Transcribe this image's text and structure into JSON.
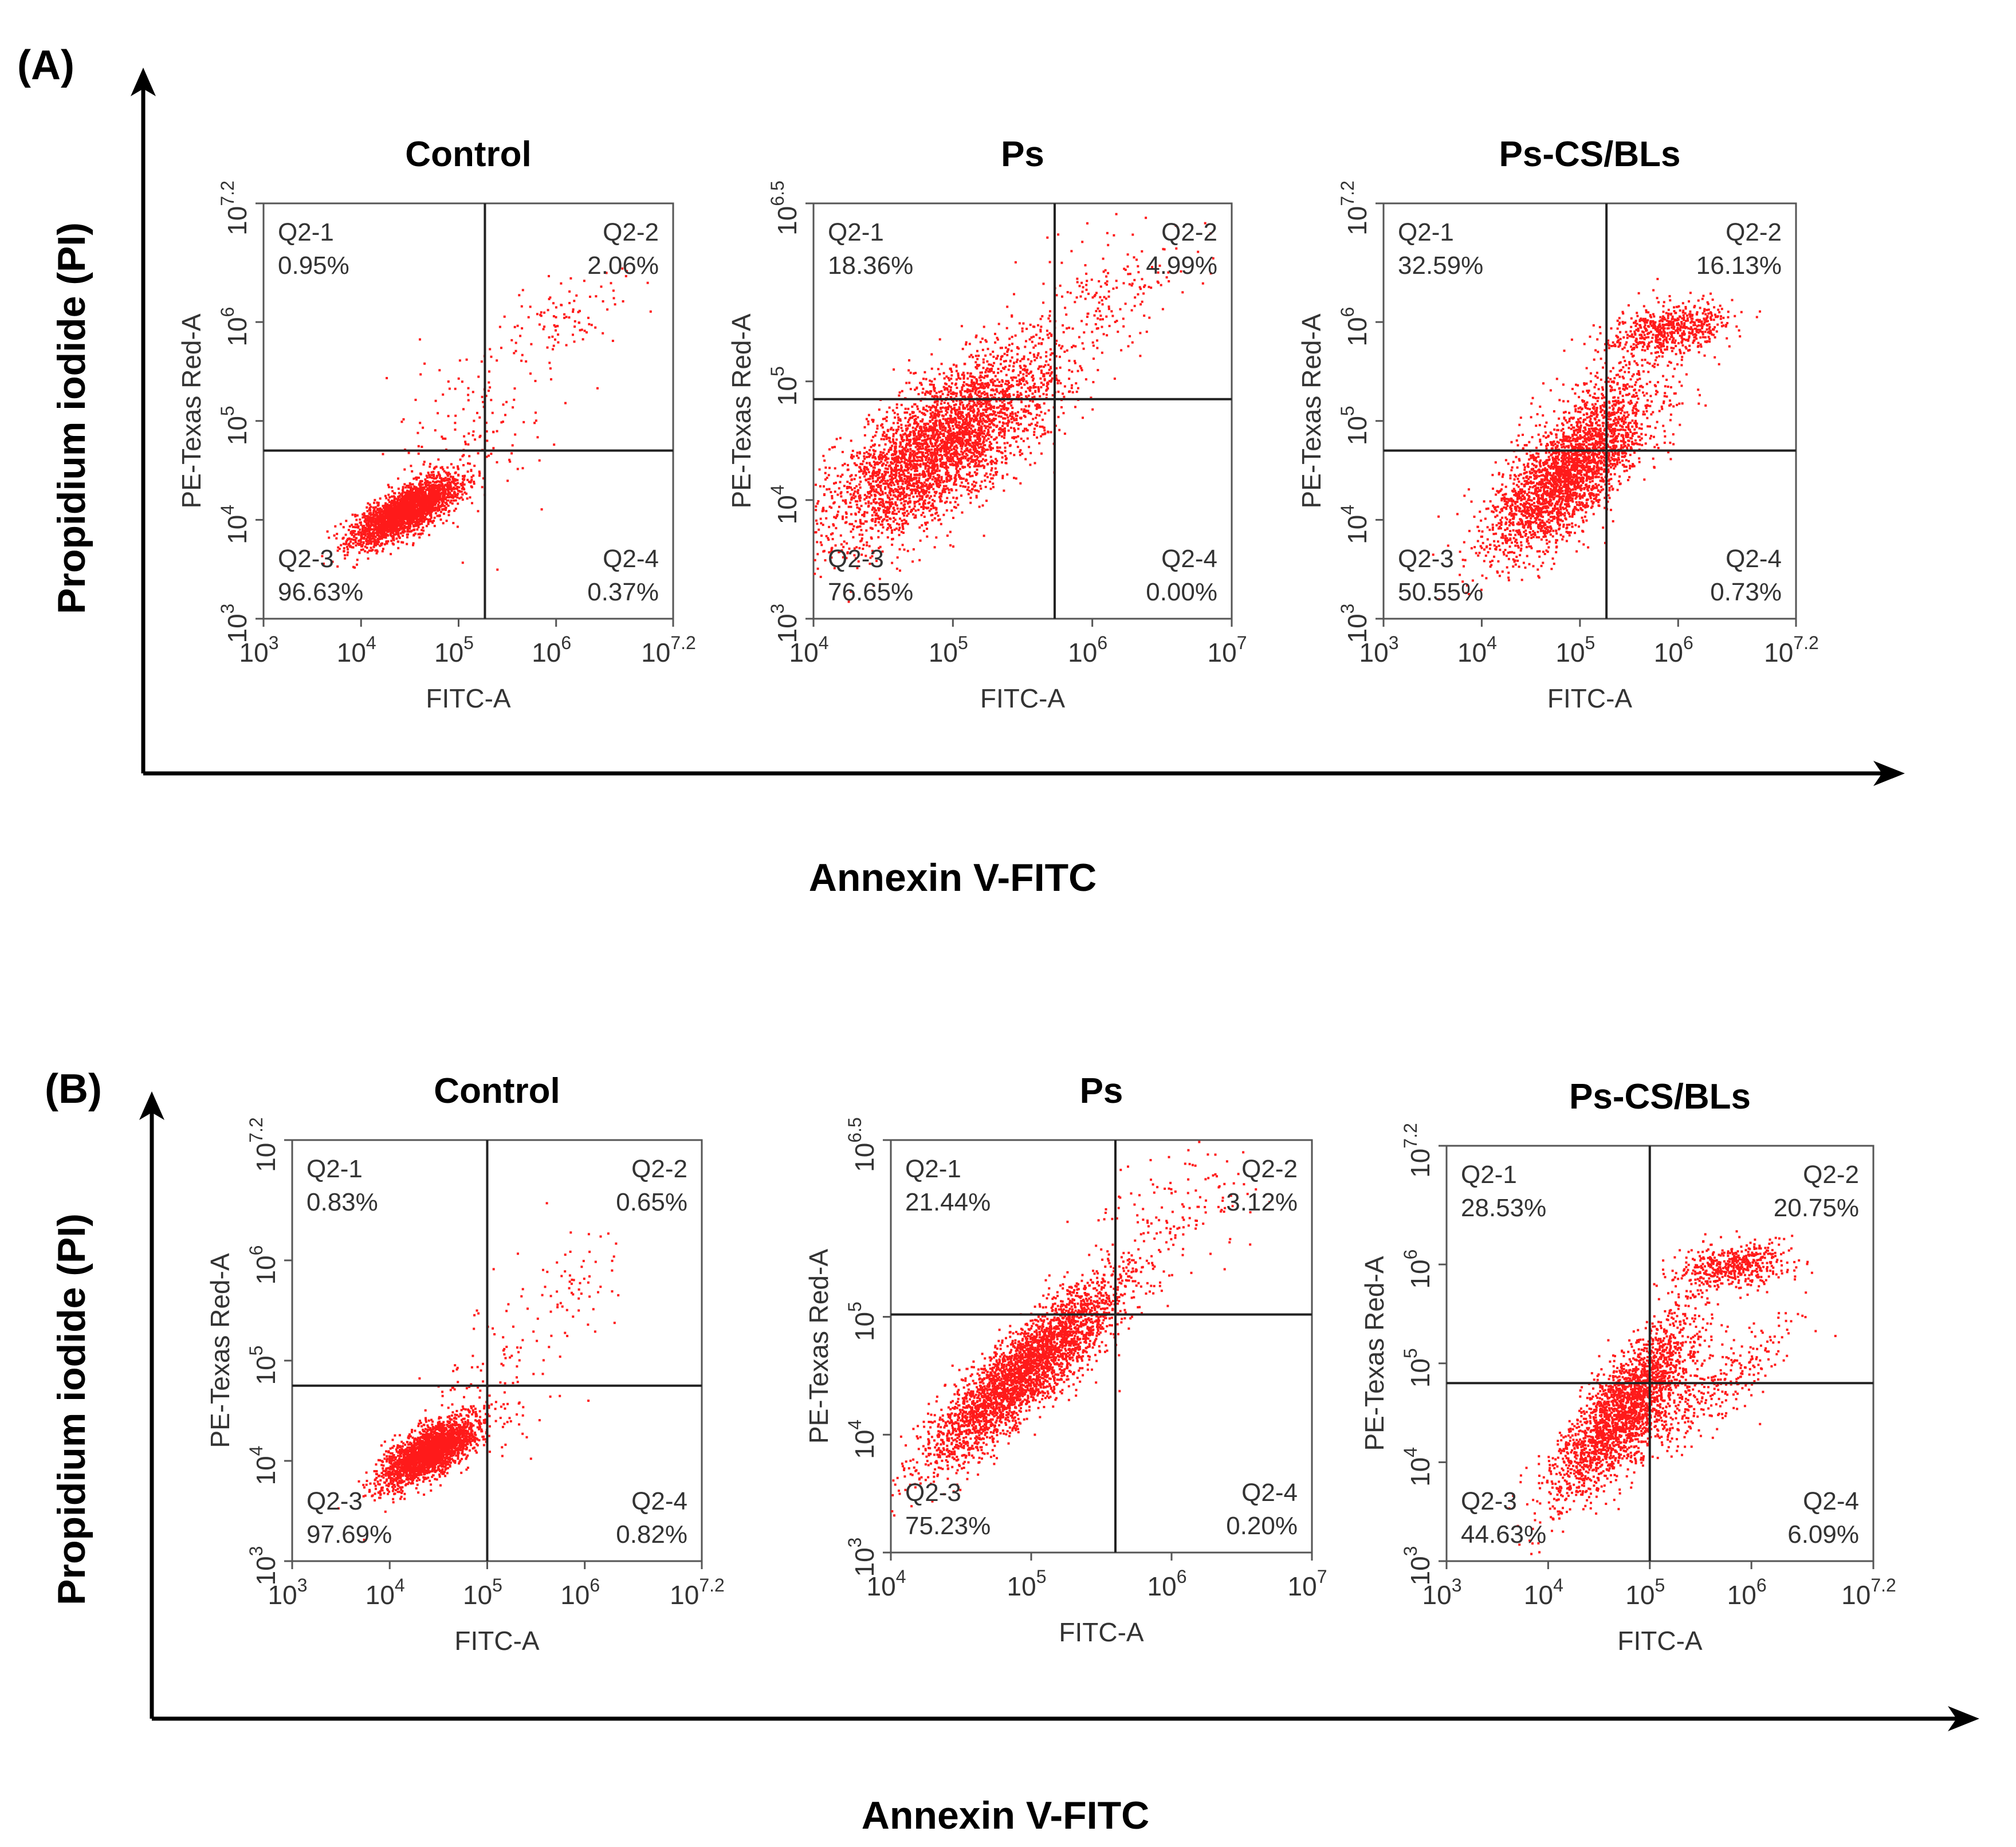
{
  "figure": {
    "panels": [
      {
        "label": "(A)",
        "y_axis_title": "Propidium iodide (PI)",
        "x_axis_title": "Annexin V-FITC"
      },
      {
        "label": "(B)",
        "y_axis_title": "Propidium iodide (PI)",
        "x_axis_title": "Annexin V-FITC"
      }
    ]
  },
  "colors": {
    "dots": "#ff1a1a",
    "axes": "#000000",
    "gate": "#222222",
    "text": "#333333"
  },
  "chart_data": [
    {
      "panel": "A",
      "title": "Control",
      "type": "scatter",
      "xlabel": "FITC-A",
      "ylabel": "PE-Texas Red-A",
      "xlim": [
        3,
        7.2
      ],
      "ylim": [
        3,
        7.2
      ],
      "xticks": [
        {
          "base": "10",
          "exp": "3",
          "v": 3
        },
        {
          "base": "10",
          "exp": "4",
          "v": 4
        },
        {
          "base": "10",
          "exp": "5",
          "v": 5
        },
        {
          "base": "10",
          "exp": "6",
          "v": 6
        },
        {
          "base": "10",
          "exp": "7.2",
          "v": 7.2
        }
      ],
      "yticks": [
        {
          "base": "10",
          "exp": "3",
          "v": 3
        },
        {
          "base": "10",
          "exp": "4",
          "v": 4
        },
        {
          "base": "10",
          "exp": "5",
          "v": 5
        },
        {
          "base": "10",
          "exp": "6",
          "v": 6
        },
        {
          "base": "10",
          "exp": "7.2",
          "v": 7.2
        }
      ],
      "gate": {
        "x": 5.27,
        "y": 4.7
      },
      "quadrants": [
        {
          "id": "Q2-1",
          "value": "0.95%"
        },
        {
          "id": "Q2-2",
          "value": "2.06%"
        },
        {
          "id": "Q2-3",
          "value": "96.63%"
        },
        {
          "id": "Q2-4",
          "value": "0.37%"
        }
      ],
      "clusters": [
        {
          "cx": 4.45,
          "cy": 4.1,
          "sx": 0.27,
          "sy": 0.17,
          "rho": 0.75,
          "n": 2600
        },
        {
          "cx": 6.15,
          "cy": 6.05,
          "sx": 0.3,
          "sy": 0.22,
          "rho": 0.5,
          "n": 90
        },
        {
          "cx": 5.2,
          "cy": 5.0,
          "sx": 0.45,
          "sy": 0.5,
          "rho": 0.4,
          "n": 160
        }
      ]
    },
    {
      "panel": "A",
      "title": "Ps",
      "type": "scatter",
      "xlabel": "FITC-A",
      "ylabel": "PE-Texas Red-A",
      "xlim": [
        4,
        7
      ],
      "ylim": [
        3,
        6.5
      ],
      "xticks": [
        {
          "base": "10",
          "exp": "4",
          "v": 4
        },
        {
          "base": "10",
          "exp": "5",
          "v": 5
        },
        {
          "base": "10",
          "exp": "6",
          "v": 6
        },
        {
          "base": "10",
          "exp": "7",
          "v": 7
        }
      ],
      "yticks": [
        {
          "base": "10",
          "exp": "3",
          "v": 3
        },
        {
          "base": "10",
          "exp": "4",
          "v": 4
        },
        {
          "base": "10",
          "exp": "5",
          "v": 5
        },
        {
          "base": "10",
          "exp": "6.5",
          "v": 6.5
        }
      ],
      "gate": {
        "x": 5.73,
        "y": 4.85
      },
      "quadrants": [
        {
          "id": "Q2-1",
          "value": "18.36%"
        },
        {
          "id": "Q2-2",
          "value": "4.99%"
        },
        {
          "id": "Q2-3",
          "value": "76.65%"
        },
        {
          "id": "Q2-4",
          "value": "0.00%"
        }
      ],
      "clusters": [
        {
          "cx": 4.9,
          "cy": 4.45,
          "sx": 0.4,
          "sy": 0.4,
          "rho": 0.7,
          "n": 3600
        },
        {
          "cx": 6.05,
          "cy": 5.7,
          "sx": 0.35,
          "sy": 0.35,
          "rho": 0.6,
          "n": 220
        }
      ]
    },
    {
      "panel": "A",
      "title": "Ps-CS/BLs",
      "type": "scatter",
      "xlabel": "FITC-A",
      "ylabel": "PE-Texas Red-A",
      "xlim": [
        3,
        7.2
      ],
      "ylim": [
        3,
        7.2
      ],
      "xticks": [
        {
          "base": "10",
          "exp": "3",
          "v": 3
        },
        {
          "base": "10",
          "exp": "4",
          "v": 4
        },
        {
          "base": "10",
          "exp": "5",
          "v": 5
        },
        {
          "base": "10",
          "exp": "6",
          "v": 6
        },
        {
          "base": "10",
          "exp": "7.2",
          "v": 7.2
        }
      ],
      "yticks": [
        {
          "base": "10",
          "exp": "3",
          "v": 3
        },
        {
          "base": "10",
          "exp": "4",
          "v": 4
        },
        {
          "base": "10",
          "exp": "5",
          "v": 5
        },
        {
          "base": "10",
          "exp": "6",
          "v": 6
        },
        {
          "base": "10",
          "exp": "7.2",
          "v": 7.2
        }
      ],
      "gate": {
        "x": 5.27,
        "y": 4.7
      },
      "quadrants": [
        {
          "id": "Q2-1",
          "value": "32.59%"
        },
        {
          "id": "Q2-2",
          "value": "16.13%"
        },
        {
          "id": "Q2-3",
          "value": "50.55%"
        },
        {
          "id": "Q2-4",
          "value": "0.73%"
        }
      ],
      "clusters": [
        {
          "cx": 4.85,
          "cy": 4.45,
          "sx": 0.4,
          "sy": 0.4,
          "rho": 0.7,
          "n": 2600
        },
        {
          "cx": 5.95,
          "cy": 5.95,
          "sx": 0.3,
          "sy": 0.12,
          "rho": 0.3,
          "n": 550
        },
        {
          "cx": 5.3,
          "cy": 5.2,
          "sx": 0.45,
          "sy": 0.45,
          "rho": 0.6,
          "n": 350
        }
      ]
    },
    {
      "panel": "B",
      "title": "Control",
      "type": "scatter",
      "xlabel": "FITC-A",
      "ylabel": "PE-Texas Red-A",
      "xlim": [
        3,
        7.2
      ],
      "ylim": [
        3,
        7.2
      ],
      "xticks": [
        {
          "base": "10",
          "exp": "3",
          "v": 3
        },
        {
          "base": "10",
          "exp": "4",
          "v": 4
        },
        {
          "base": "10",
          "exp": "5",
          "v": 5
        },
        {
          "base": "10",
          "exp": "6",
          "v": 6
        },
        {
          "base": "10",
          "exp": "7.2",
          "v": 7.2
        }
      ],
      "yticks": [
        {
          "base": "10",
          "exp": "3",
          "v": 3
        },
        {
          "base": "10",
          "exp": "4",
          "v": 4
        },
        {
          "base": "10",
          "exp": "5",
          "v": 5
        },
        {
          "base": "10",
          "exp": "6",
          "v": 6
        },
        {
          "base": "10",
          "exp": "7.2",
          "v": 7.2
        }
      ],
      "gate": {
        "x": 5.0,
        "y": 4.75
      },
      "quadrants": [
        {
          "id": "Q2-1",
          "value": "0.83%"
        },
        {
          "id": "Q2-2",
          "value": "0.65%"
        },
        {
          "id": "Q2-3",
          "value": "97.69%"
        },
        {
          "id": "Q2-4",
          "value": "0.82%"
        }
      ],
      "clusters": [
        {
          "cx": 4.4,
          "cy": 4.1,
          "sx": 0.25,
          "sy": 0.17,
          "rho": 0.7,
          "n": 2400
        },
        {
          "cx": 5.9,
          "cy": 5.8,
          "sx": 0.25,
          "sy": 0.25,
          "rho": 0.5,
          "n": 50
        },
        {
          "cx": 5.0,
          "cy": 4.8,
          "sx": 0.5,
          "sy": 0.5,
          "rho": 0.5,
          "n": 130
        }
      ]
    },
    {
      "panel": "B",
      "title": "Ps",
      "type": "scatter",
      "xlabel": "FITC-A",
      "ylabel": "PE-Texas Red-A",
      "xlim": [
        4,
        7
      ],
      "ylim": [
        3,
        6.5
      ],
      "xticks": [
        {
          "base": "10",
          "exp": "4",
          "v": 4
        },
        {
          "base": "10",
          "exp": "5",
          "v": 5
        },
        {
          "base": "10",
          "exp": "6",
          "v": 6
        },
        {
          "base": "10",
          "exp": "7",
          "v": 7
        }
      ],
      "yticks": [
        {
          "base": "10",
          "exp": "3",
          "v": 3
        },
        {
          "base": "10",
          "exp": "4",
          "v": 4
        },
        {
          "base": "10",
          "exp": "5",
          "v": 5
        },
        {
          "base": "10",
          "exp": "6.5",
          "v": 6.5
        }
      ],
      "gate": {
        "x": 5.6,
        "y": 5.02
      },
      "quadrants": [
        {
          "id": "Q2-1",
          "value": "21.44%"
        },
        {
          "id": "Q2-2",
          "value": "3.12%"
        },
        {
          "id": "Q2-3",
          "value": "75.23%"
        },
        {
          "id": "Q2-4",
          "value": "0.20%"
        }
      ],
      "clusters": [
        {
          "cx": 4.95,
          "cy": 4.55,
          "sx": 0.35,
          "sy": 0.4,
          "rho": 0.88,
          "n": 3400
        },
        {
          "cx": 6.0,
          "cy": 5.9,
          "sx": 0.3,
          "sy": 0.3,
          "rho": 0.5,
          "n": 140
        }
      ]
    },
    {
      "panel": "B",
      "title": "Ps-CS/BLs",
      "type": "scatter",
      "xlabel": "FITC-A",
      "ylabel": "PE-Texas Red-A",
      "xlim": [
        3,
        7.2
      ],
      "ylim": [
        3,
        7.2
      ],
      "xticks": [
        {
          "base": "10",
          "exp": "3",
          "v": 3
        },
        {
          "base": "10",
          "exp": "4",
          "v": 4
        },
        {
          "base": "10",
          "exp": "5",
          "v": 5
        },
        {
          "base": "10",
          "exp": "6",
          "v": 6
        },
        {
          "base": "10",
          "exp": "7.2",
          "v": 7.2
        }
      ],
      "yticks": [
        {
          "base": "10",
          "exp": "3",
          "v": 3
        },
        {
          "base": "10",
          "exp": "4",
          "v": 4
        },
        {
          "base": "10",
          "exp": "5",
          "v": 5
        },
        {
          "base": "10",
          "exp": "6",
          "v": 6
        },
        {
          "base": "10",
          "exp": "7.2",
          "v": 7.2
        }
      ],
      "gate": {
        "x": 5.0,
        "y": 4.8
      },
      "quadrants": [
        {
          "id": "Q2-1",
          "value": "28.53%"
        },
        {
          "id": "Q2-2",
          "value": "20.75%"
        },
        {
          "id": "Q2-3",
          "value": "44.63%"
        },
        {
          "id": "Q2-4",
          "value": "6.09%"
        }
      ],
      "clusters": [
        {
          "cx": 4.75,
          "cy": 4.55,
          "sx": 0.35,
          "sy": 0.45,
          "rho": 0.8,
          "n": 2400
        },
        {
          "cx": 5.8,
          "cy": 6.0,
          "sx": 0.28,
          "sy": 0.12,
          "rho": 0.3,
          "n": 500
        },
        {
          "cx": 5.6,
          "cy": 4.7,
          "sx": 0.4,
          "sy": 0.35,
          "rho": 0.85,
          "n": 300
        }
      ]
    }
  ]
}
